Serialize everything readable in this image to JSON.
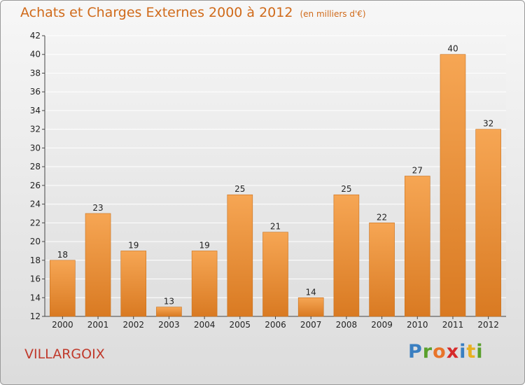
{
  "title": "Achats et Charges Externes 2000 à 2012",
  "unit": "(en milliers d'€)",
  "commune": "VILLARGOIX",
  "logo": [
    "P",
    "r",
    "o",
    "x",
    "i",
    "t",
    "i"
  ],
  "logo_colors": [
    "#3a7fc1",
    "#5aa02c",
    "#e8742a",
    "#d62a2a",
    "#3a7fc1",
    "#e8b020",
    "#5aa02c"
  ],
  "colors": {
    "bar_top": "#f6a654",
    "bar_bottom": "#d97a22",
    "title": "#d06a1a",
    "commune": "#c0392b"
  },
  "chart_data": {
    "type": "bar",
    "title": "Achats et Charges Externes 2000 à 2012",
    "subtitle": "(en milliers d'€)",
    "categories": [
      "2000",
      "2001",
      "2002",
      "2003",
      "2004",
      "2005",
      "2006",
      "2007",
      "2008",
      "2009",
      "2010",
      "2011",
      "2012"
    ],
    "values": [
      18,
      23,
      19,
      13,
      19,
      25,
      21,
      14,
      25,
      22,
      27,
      40,
      32
    ],
    "ylim": [
      12,
      42
    ],
    "yticks": [
      12,
      14,
      16,
      18,
      20,
      22,
      24,
      26,
      28,
      30,
      32,
      34,
      36,
      38,
      40,
      42
    ],
    "grid": true
  }
}
